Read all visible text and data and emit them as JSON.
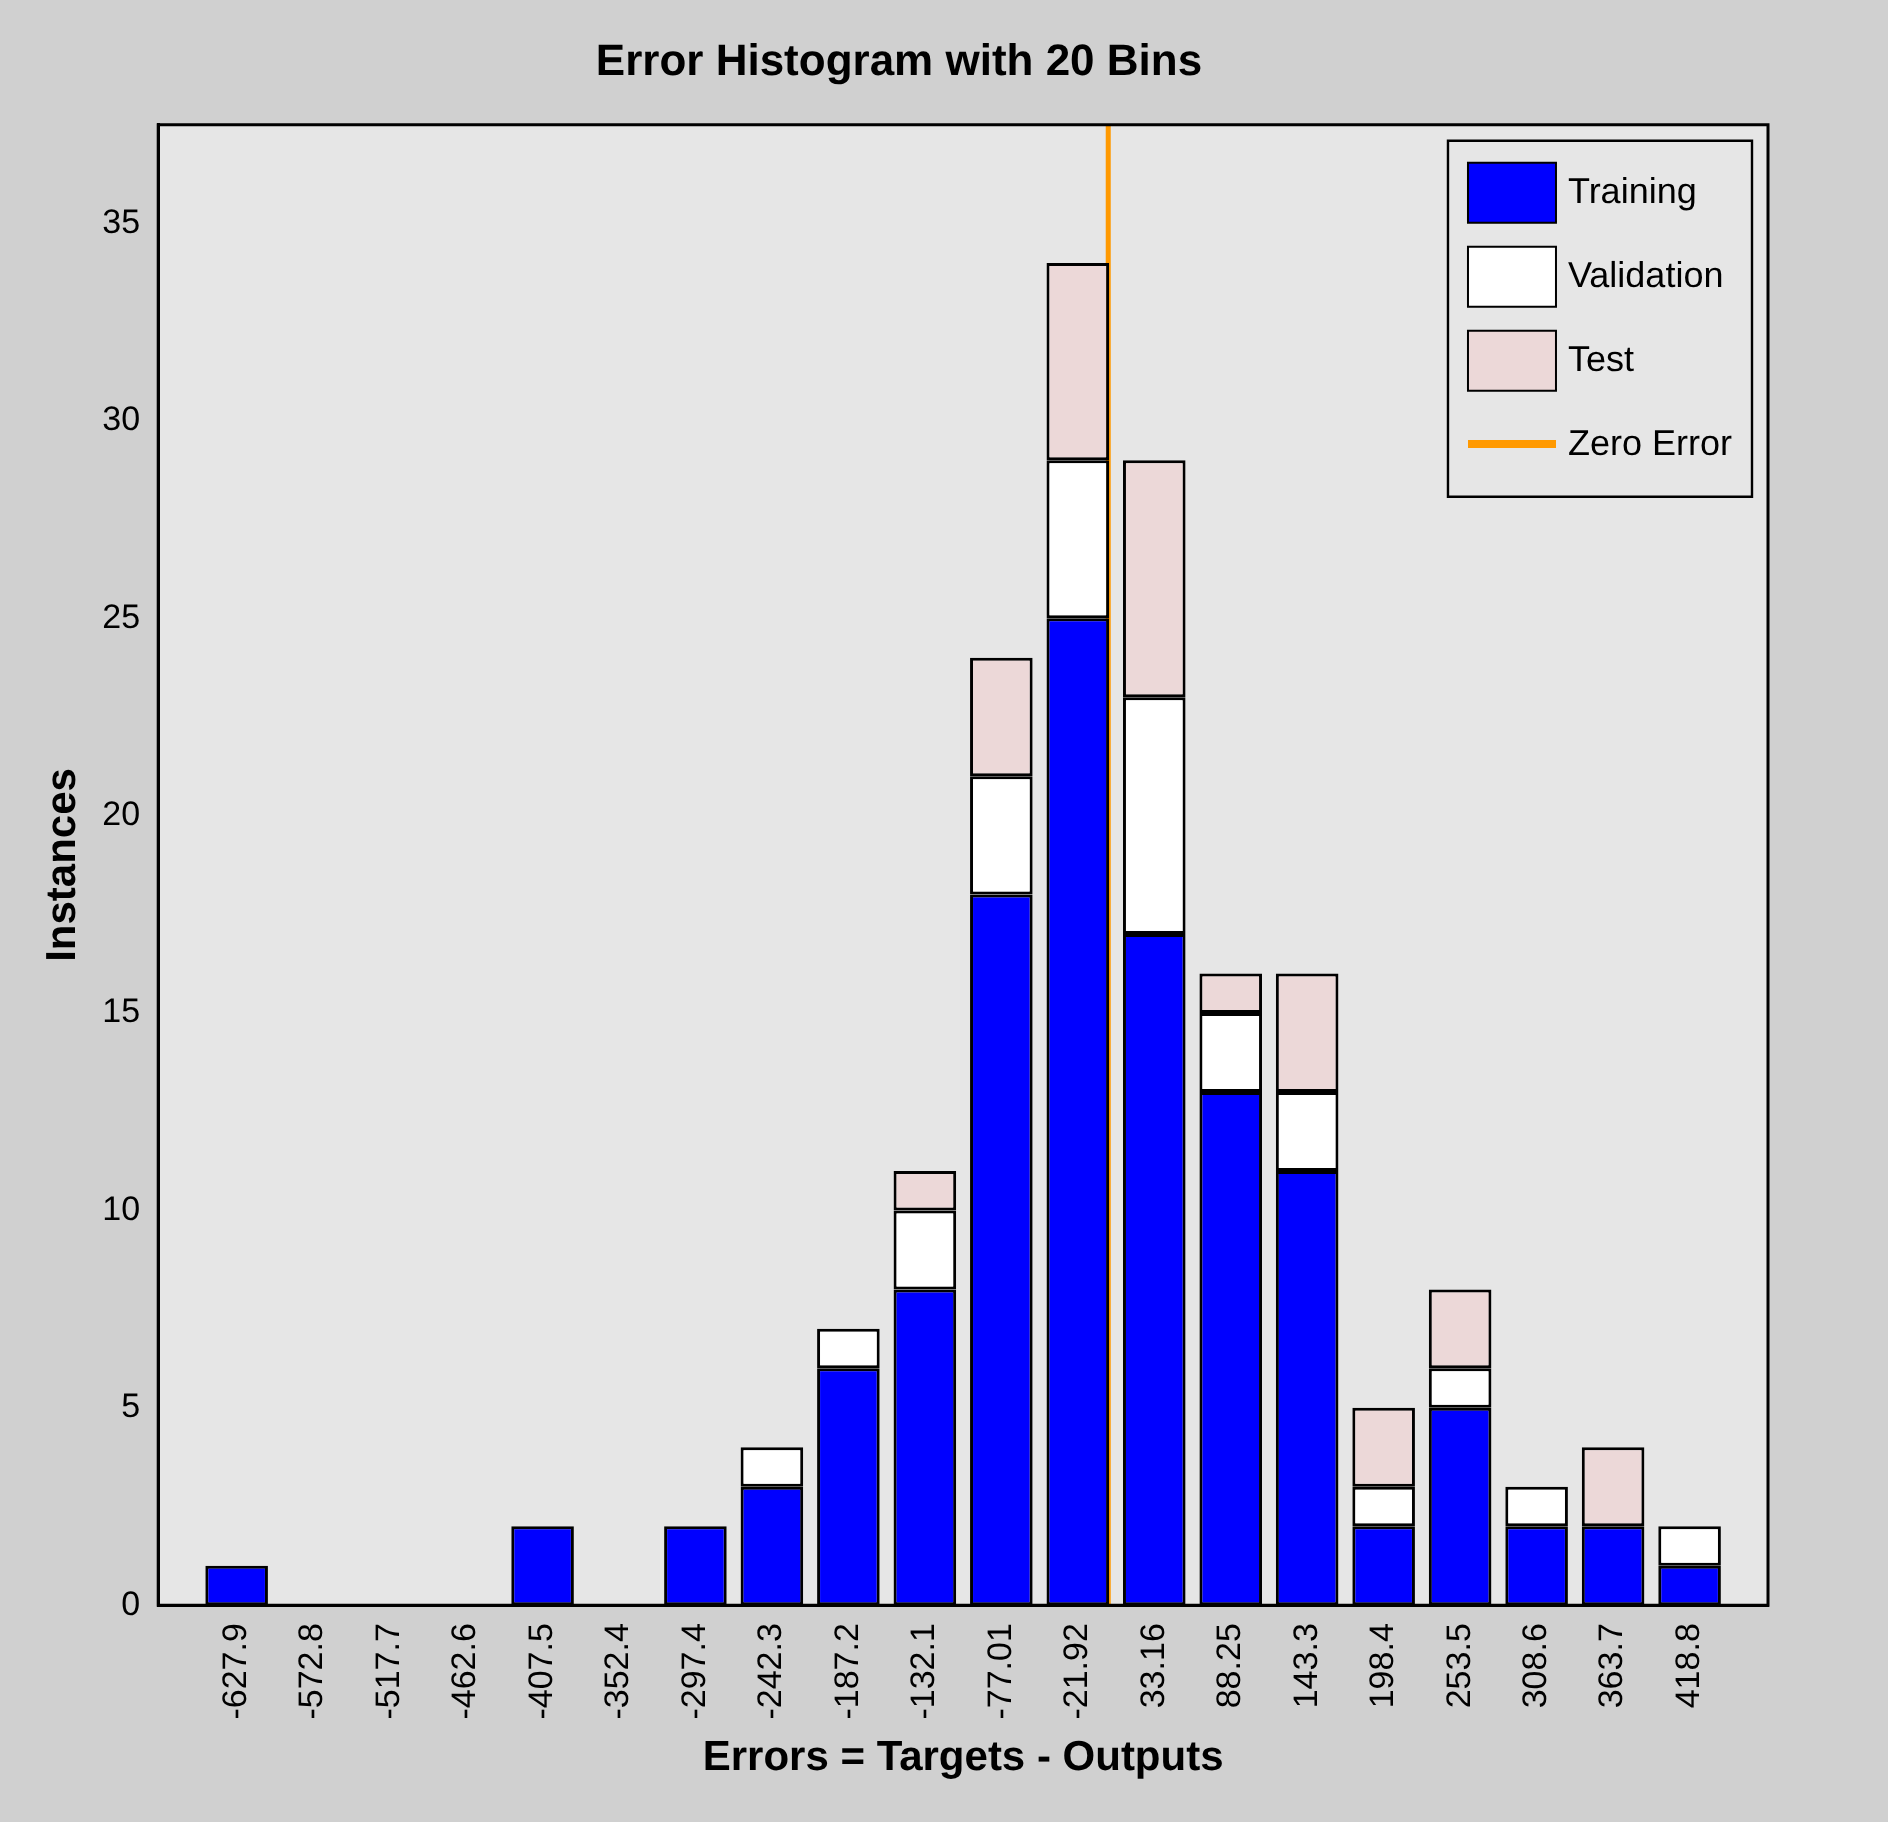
{
  "chart_data": {
    "type": "bar",
    "title": "Error Histogram with 20 Bins",
    "xlabel": "Errors = Targets - Outputs",
    "ylabel": "Instances",
    "x": [
      -627.9,
      -572.8,
      -517.7,
      -462.6,
      -407.5,
      -352.4,
      -297.4,
      -242.3,
      -187.2,
      -132.1,
      -77.01,
      -21.92,
      33.16,
      88.25,
      143.3,
      198.4,
      253.5,
      308.6,
      363.7,
      418.8
    ],
    "stacked": true,
    "series": [
      {
        "name": "Training",
        "color": "#0000ff",
        "values": [
          1,
          0,
          0,
          0,
          2,
          0,
          2,
          3,
          6,
          8,
          18,
          25,
          17,
          13,
          11,
          2,
          5,
          2,
          2,
          1
        ]
      },
      {
        "name": "Validation",
        "color": "#ffffff",
        "values": [
          0,
          0,
          0,
          0,
          0,
          0,
          0,
          1,
          1,
          2,
          3,
          4,
          6,
          2,
          2,
          1,
          1,
          1,
          0,
          1
        ]
      },
      {
        "name": "Test",
        "color": "#ecd8d8",
        "values": [
          0,
          0,
          0,
          0,
          0,
          0,
          0,
          0,
          0,
          1,
          3,
          5,
          6,
          1,
          3,
          2,
          2,
          0,
          2,
          0
        ]
      },
      {
        "name": "Zero Error",
        "type": "line",
        "color": "#ff9900",
        "x": [
          0,
          0
        ],
        "values": [
          0,
          37.5
        ]
      }
    ],
    "xlim": [
      -655.4,
      446.3
    ],
    "ylim": [
      0,
      37.5
    ],
    "xticks": [
      -627.9,
      -572.8,
      -517.7,
      -462.6,
      -407.5,
      -352.4,
      -297.4,
      -242.3,
      -187.2,
      -132.1,
      -77.01,
      -21.92,
      33.16,
      88.25,
      143.3,
      198.4,
      253.5,
      308.6,
      363.7,
      418.8
    ],
    "yticks": [
      0,
      5,
      10,
      15,
      20,
      25,
      30,
      35
    ],
    "legend": "top right"
  }
}
